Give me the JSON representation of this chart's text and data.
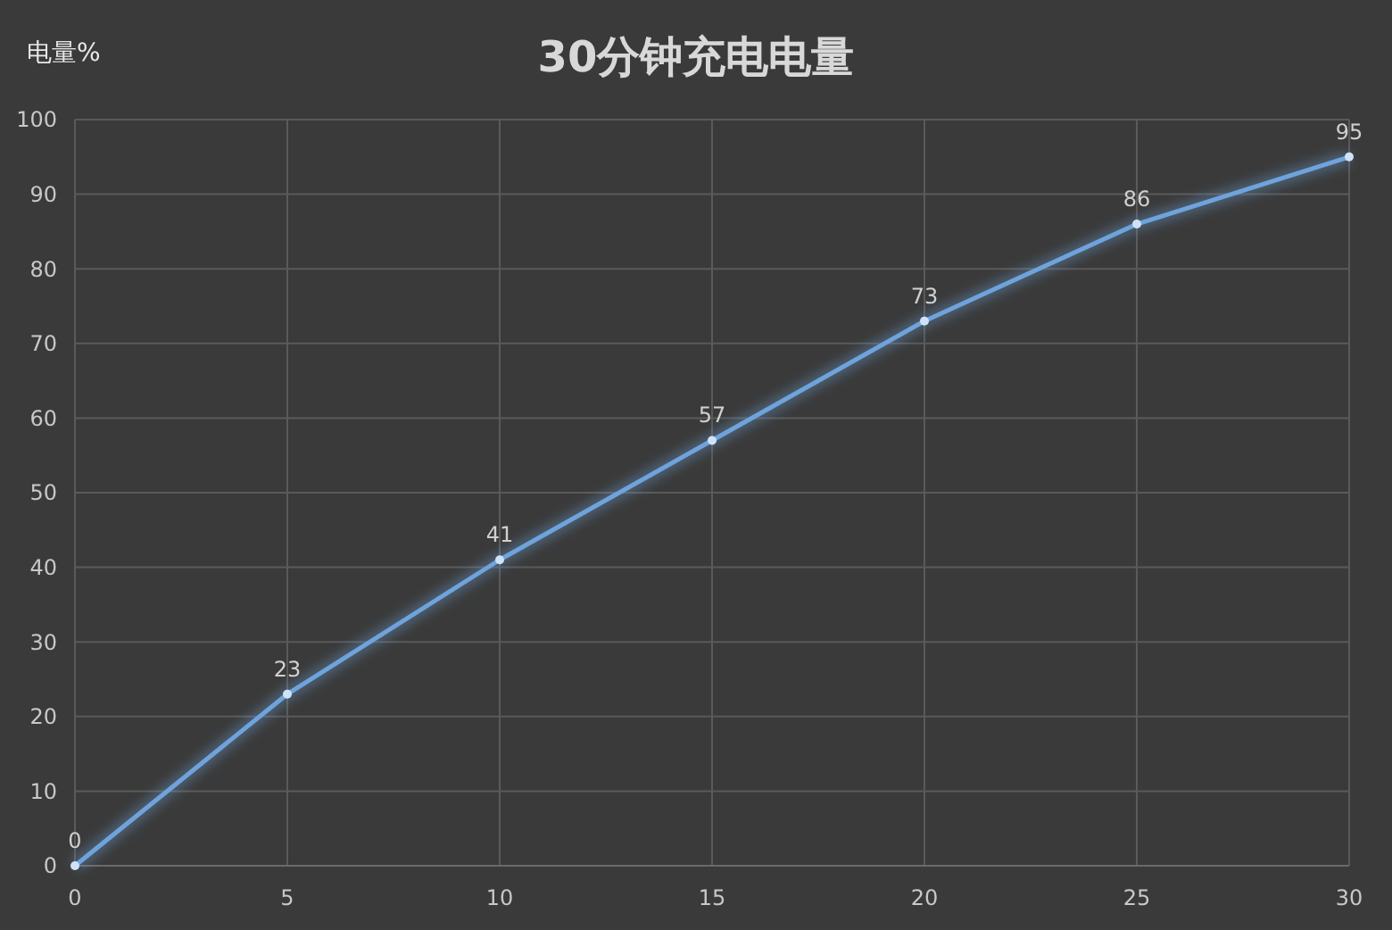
{
  "chart_data": {
    "type": "line",
    "title": "30分钟充电电量",
    "ylabel": "电量%",
    "x": [
      0,
      5,
      10,
      15,
      20,
      25,
      30
    ],
    "series": [
      {
        "color": "#6fa3dc",
        "values": [
          0,
          23,
          41,
          57,
          73,
          86,
          95
        ]
      }
    ],
    "xlim": [
      0,
      30
    ],
    "xticks": [
      0,
      5,
      10,
      15,
      20,
      25,
      30
    ],
    "ylim": [
      0,
      100
    ],
    "yticks": [
      0,
      10,
      20,
      30,
      40,
      50,
      60,
      70,
      80,
      90,
      100
    ],
    "grid": true,
    "data_labels": true,
    "marker": "circle",
    "line_style": "solid"
  }
}
